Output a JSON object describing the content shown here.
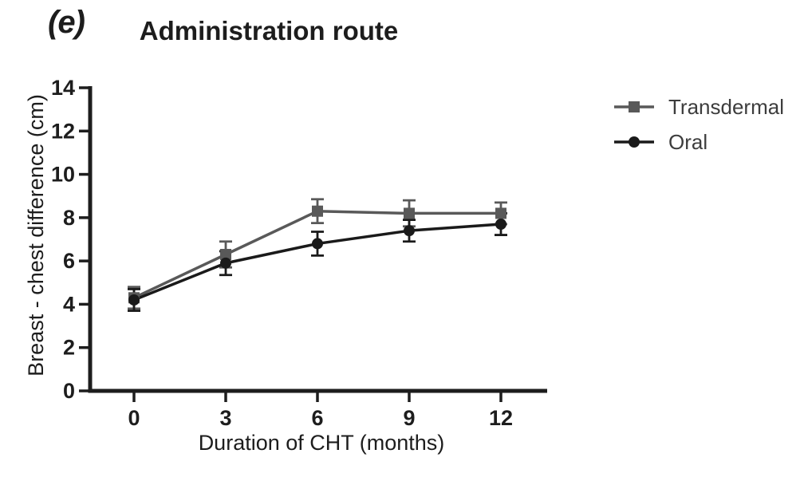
{
  "panel_label": "(e)",
  "chart_data": {
    "type": "line",
    "title": "Administration route",
    "xlabel": "Duration of CHT (months)",
    "ylabel": "Breast - chest difference (cm)",
    "x": [
      0,
      3,
      6,
      9,
      12
    ],
    "x_ticks": [
      0,
      3,
      6,
      9,
      12
    ],
    "y_ticks": [
      0,
      2,
      4,
      6,
      8,
      10,
      12,
      14
    ],
    "xlim": [
      0,
      13.5
    ],
    "ylim": [
      0,
      14
    ],
    "grid": false,
    "legend_position": "right",
    "axis_color": "#1d1d1d",
    "series": [
      {
        "name": "Transdermal",
        "marker": "square",
        "color": "#595959",
        "values": [
          4.3,
          6.3,
          8.3,
          8.2,
          8.2
        ],
        "errors": [
          0.5,
          0.6,
          0.55,
          0.6,
          0.5
        ]
      },
      {
        "name": "Oral",
        "marker": "circle",
        "color": "#1a1a1a",
        "values": [
          4.2,
          5.9,
          6.8,
          7.4,
          7.7
        ],
        "errors": [
          0.5,
          0.55,
          0.55,
          0.5,
          0.5
        ]
      }
    ]
  }
}
